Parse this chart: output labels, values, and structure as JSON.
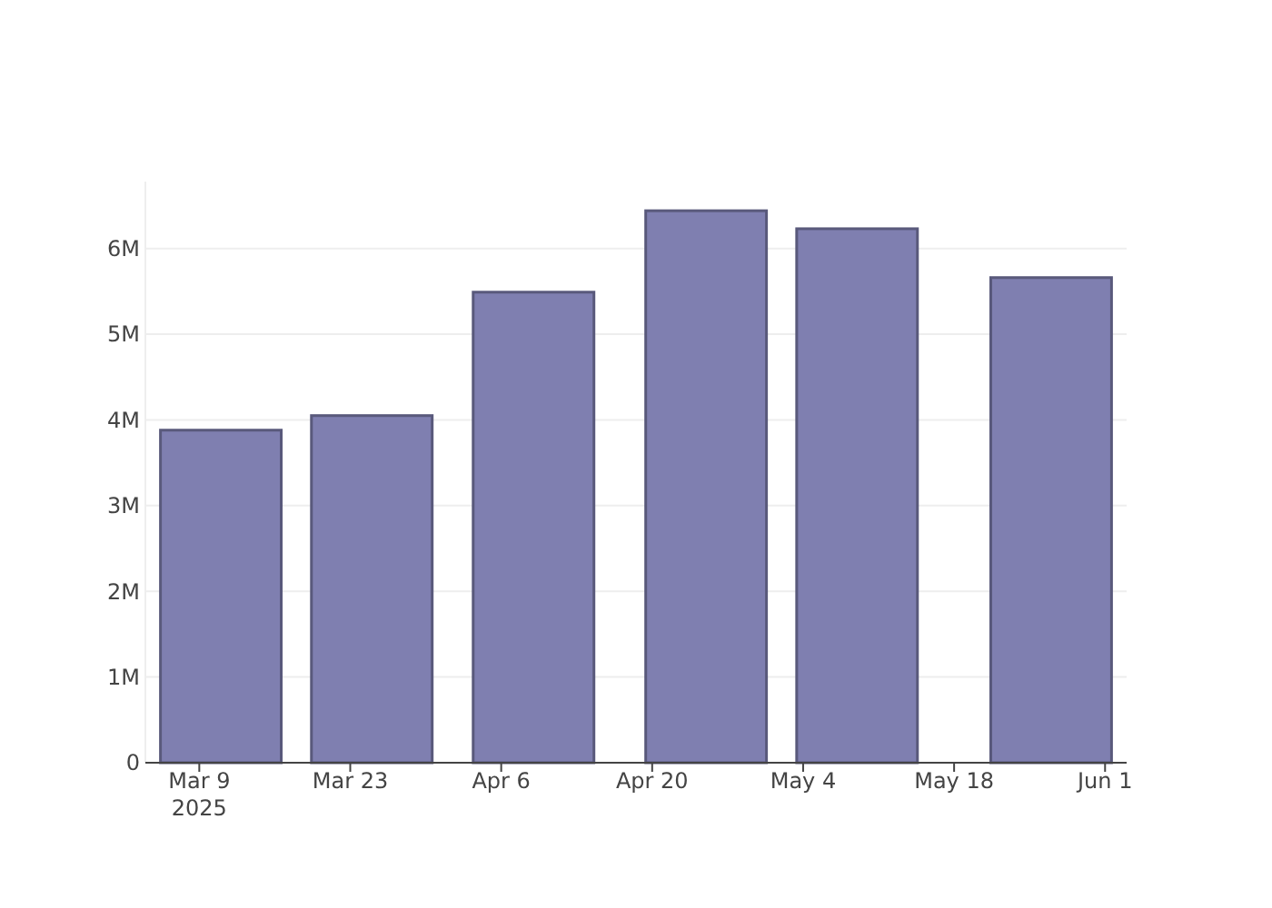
{
  "chart_data": {
    "type": "bar",
    "x": [
      "2025-03-11",
      "2025-03-25",
      "2025-04-09",
      "2025-04-25",
      "2025-05-09",
      "2025-05-27"
    ],
    "values": [
      3880000,
      4050000,
      5490000,
      6440000,
      6230000,
      5660000
    ],
    "color": "#7f7fb0",
    "xlim": [
      "2025-03-04",
      "2025-06-03"
    ],
    "xticks": [
      {
        "value": "2025-03-09",
        "label": "Mar 9\n2025"
      },
      {
        "value": "2025-03-23",
        "label": "Mar 23"
      },
      {
        "value": "2025-04-06",
        "label": "Apr 6"
      },
      {
        "value": "2025-04-20",
        "label": "Apr 20"
      },
      {
        "value": "2025-05-04",
        "label": "May 4"
      },
      {
        "value": "2025-05-18",
        "label": "May 18"
      },
      {
        "value": "2025-06-01",
        "label": "Jun 1"
      }
    ],
    "yticks": [
      {
        "value": 0,
        "label": "0"
      },
      {
        "value": 1000000,
        "label": "1M"
      },
      {
        "value": 2000000,
        "label": "2M"
      },
      {
        "value": 3000000,
        "label": "3M"
      },
      {
        "value": 4000000,
        "label": "4M"
      },
      {
        "value": 5000000,
        "label": "5M"
      },
      {
        "value": 6000000,
        "label": "6M"
      }
    ],
    "ylim": [
      0,
      6780000
    ],
    "grid": "y"
  }
}
